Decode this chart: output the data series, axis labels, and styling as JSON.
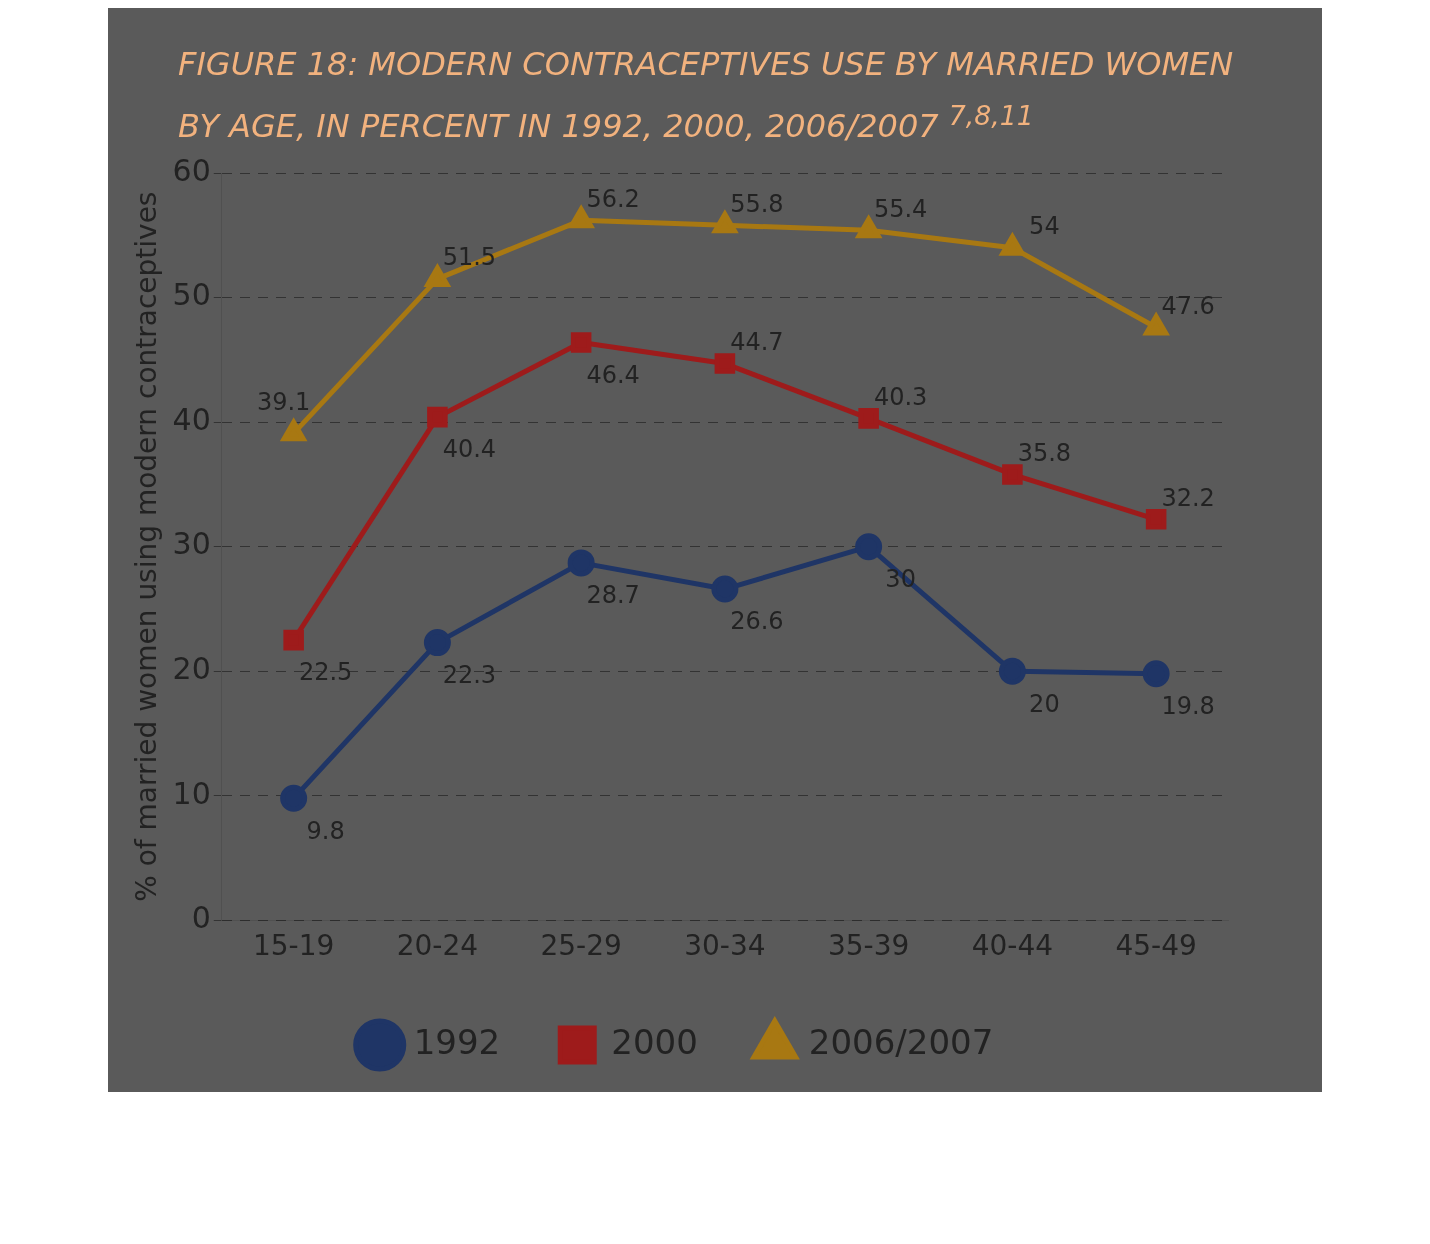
{
  "chart_data": {
    "type": "line",
    "title": "FIGURE 18: MODERN CONTRACEPTIVES USE BY MARRIED WOMEN BY AGE, IN PERCENT IN 1992, 2000, 2006/2007 $^{7,8,11}$",
    "ylabel": "% of married women using modern contraceptives",
    "categories": [
      "15-19",
      "20-24",
      "25-29",
      "30-34",
      "35-39",
      "40-44",
      "45-49"
    ],
    "series": [
      {
        "name": "1992",
        "color": "#1f3566",
        "marker": "circle",
        "values": [
          9.8,
          22.3,
          28.7,
          26.6,
          30,
          20,
          19.8
        ]
      },
      {
        "name": "2000",
        "color": "#9e1b1b",
        "marker": "square",
        "values": [
          22.5,
          40.4,
          46.4,
          44.7,
          40.3,
          35.8,
          32.2
        ]
      },
      {
        "name": "2006/2007",
        "color": "#a87812",
        "marker": "triangle",
        "values": [
          39.1,
          51.5,
          56.2,
          55.8,
          55.4,
          54,
          47.6
        ]
      }
    ],
    "ylim": [
      0,
      60
    ],
    "yticks": [
      0,
      10,
      20,
      30,
      40,
      50,
      60
    ],
    "grid": "y",
    "line_style": "solid",
    "legend": "bottom",
    "data_labels": true
  }
}
